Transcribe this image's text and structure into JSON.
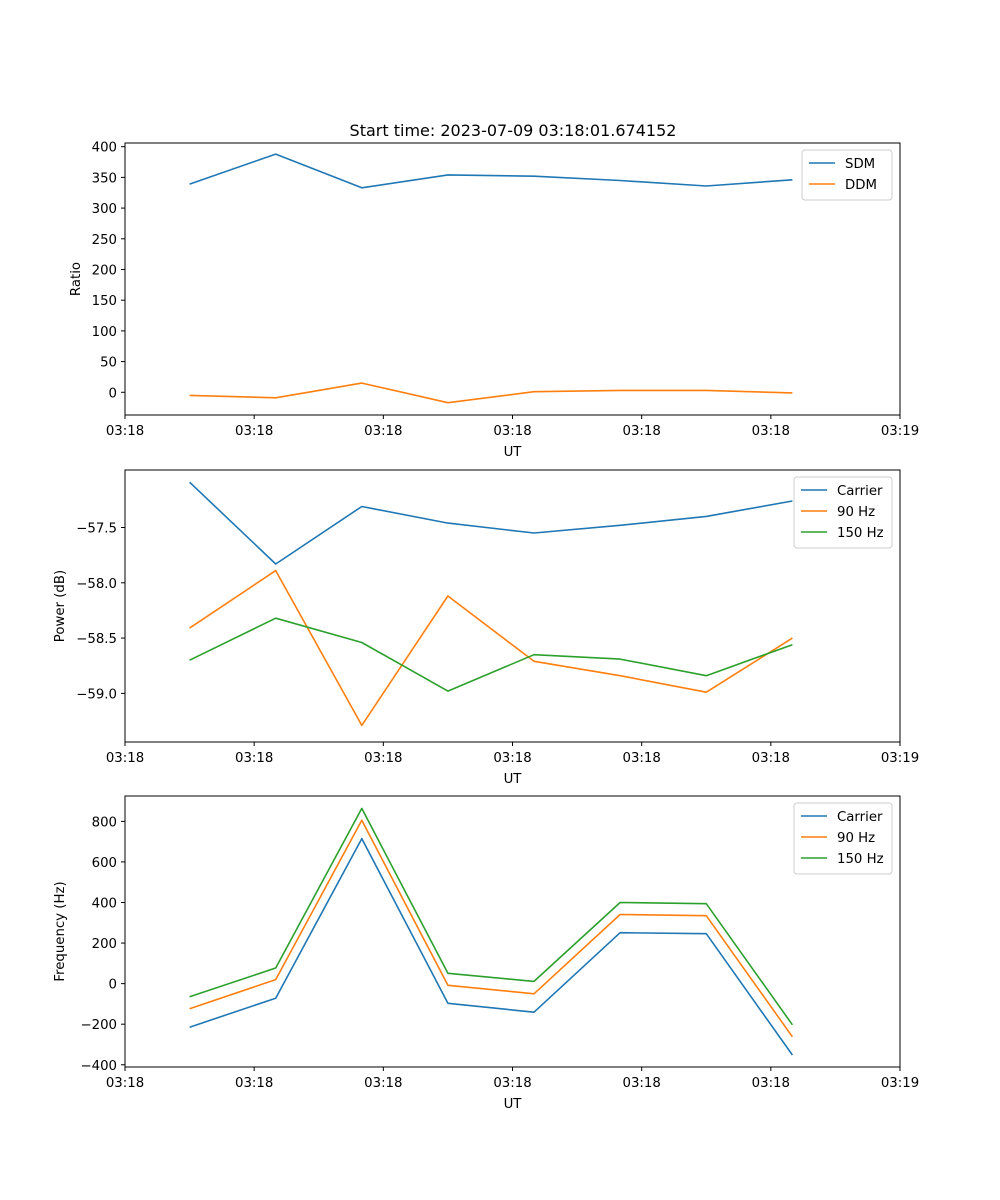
{
  "figure": {
    "title": "Start time: 2023-07-09 03:18:01.674152"
  },
  "colors": {
    "blue": "#1f77b4",
    "orange": "#ff7f0e",
    "green": "#2ca02c"
  },
  "chart_data": [
    {
      "type": "line",
      "title": "Start time: 2023-07-09 03:18:01.674152",
      "xlabel": "UT",
      "ylabel": "Ratio",
      "x": [
        0,
        1,
        2,
        3,
        4,
        5,
        6,
        7
      ],
      "xlim": [
        -0.75,
        8.25
      ],
      "xticks": [
        -0.75,
        0.75,
        2.25,
        3.75,
        5.25,
        6.75,
        8.25
      ],
      "xtick_labels": [
        "03:18",
        "03:18",
        "03:18",
        "03:18",
        "03:18",
        "03:18",
        "03:19"
      ],
      "ylim": [
        -37,
        406
      ],
      "yticks": [
        0,
        50,
        100,
        150,
        200,
        250,
        300,
        350,
        400
      ],
      "ytick_labels": [
        "0",
        "50",
        "100",
        "150",
        "200",
        "250",
        "300",
        "350",
        "400"
      ],
      "legend": "top-right",
      "series": [
        {
          "name": "SDM",
          "color": "#1f77b4",
          "values": [
            339,
            388,
            333,
            354,
            352,
            345,
            336,
            346
          ]
        },
        {
          "name": "DDM",
          "color": "#ff7f0e",
          "values": [
            -5,
            -9,
            15,
            -17,
            1,
            3,
            3,
            -1
          ]
        }
      ]
    },
    {
      "type": "line",
      "title": "",
      "xlabel": "UT",
      "ylabel": "Power (dB)",
      "x": [
        0,
        1,
        2,
        3,
        4,
        5,
        6,
        7
      ],
      "xlim": [
        -0.75,
        8.25
      ],
      "xticks": [
        -0.75,
        0.75,
        2.25,
        3.75,
        5.25,
        6.75,
        8.25
      ],
      "xtick_labels": [
        "03:18",
        "03:18",
        "03:18",
        "03:18",
        "03:18",
        "03:18",
        "03:19"
      ],
      "ylim": [
        -59.44,
        -56.98
      ],
      "yticks": [
        -57.5,
        -58.0,
        -58.5,
        -59.0
      ],
      "ytick_labels": [
        "−57.5",
        "−58.0",
        "−58.5",
        "−59.0"
      ],
      "legend": "top-right",
      "series": [
        {
          "name": "Carrier",
          "color": "#1f77b4",
          "values": [
            -57.09,
            -57.83,
            -57.31,
            -57.46,
            -57.55,
            -57.48,
            -57.4,
            -57.26
          ]
        },
        {
          "name": "90 Hz",
          "color": "#ff7f0e",
          "values": [
            -58.41,
            -57.89,
            -59.29,
            -58.12,
            -58.71,
            -58.84,
            -58.99,
            -58.5
          ]
        },
        {
          "name": "150 Hz",
          "color": "#2ca02c",
          "values": [
            -58.7,
            -58.32,
            -58.54,
            -58.98,
            -58.65,
            -58.69,
            -58.84,
            -58.56
          ]
        }
      ]
    },
    {
      "type": "line",
      "title": "",
      "xlabel": "UT",
      "ylabel": "Frequency (Hz)",
      "x": [
        0,
        1,
        2,
        3,
        4,
        5,
        6,
        7
      ],
      "xlim": [
        -0.75,
        8.25
      ],
      "xticks": [
        -0.75,
        0.75,
        2.25,
        3.75,
        5.25,
        6.75,
        8.25
      ],
      "xtick_labels": [
        "03:18",
        "03:18",
        "03:18",
        "03:18",
        "03:18",
        "03:18",
        "03:19"
      ],
      "ylim": [
        -411,
        925
      ],
      "yticks": [
        800,
        600,
        400,
        200,
        0,
        -200,
        -400
      ],
      "ytick_labels": [
        "800",
        "600",
        "400",
        "200",
        "0",
        "−200",
        "−400"
      ],
      "legend": "top-right",
      "series": [
        {
          "name": "Carrier",
          "color": "#1f77b4",
          "values": [
            -215,
            -72,
            715,
            -97,
            -141,
            251,
            246,
            -352
          ]
        },
        {
          "name": "90 Hz",
          "color": "#ff7f0e",
          "values": [
            -124,
            20,
            805,
            -8,
            -50,
            341,
            335,
            -262
          ]
        },
        {
          "name": "150 Hz",
          "color": "#2ca02c",
          "values": [
            -65,
            77,
            864,
            51,
            11,
            400,
            394,
            -203
          ]
        }
      ]
    }
  ]
}
